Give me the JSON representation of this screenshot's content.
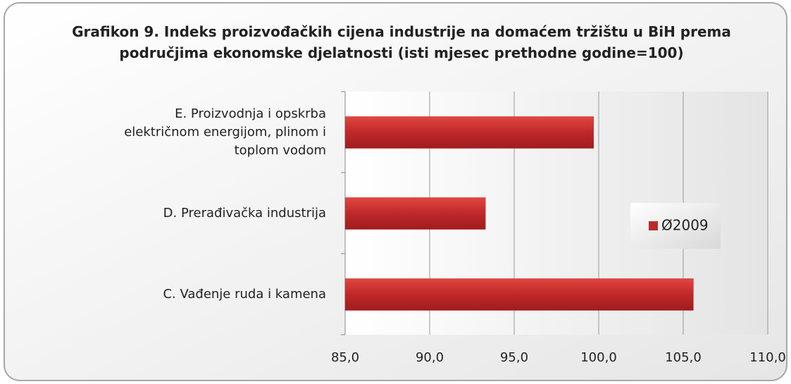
{
  "chart_data": {
    "type": "bar",
    "orientation": "horizontal",
    "title": "Grafikon 9. Indeks proizvođačkih cijena industrije na domaćem tržištu u BiH prema područjima ekonomske djelatnosti (isti mjesec prethodne godine=100)",
    "categories": [
      "E. Proizvodnja i opskrba električnom energijom, plinom i toplom vodom",
      "D. Prerađivačka industrija",
      "C. Vađenje ruda i kamena"
    ],
    "series": [
      {
        "name": "Ø2009",
        "color": "#c0282a",
        "values": [
          99.7,
          93.3,
          105.6
        ]
      }
    ],
    "xlim": [
      85,
      110
    ],
    "xticks": [
      {
        "value": 85,
        "label": "85,0"
      },
      {
        "value": 90,
        "label": "90,0"
      },
      {
        "value": 95,
        "label": "95,0"
      },
      {
        "value": 100,
        "label": "100,0"
      },
      {
        "value": 105,
        "label": "105,0"
      },
      {
        "value": 110,
        "label": "110,0"
      }
    ],
    "grid": true,
    "legend": "right"
  }
}
